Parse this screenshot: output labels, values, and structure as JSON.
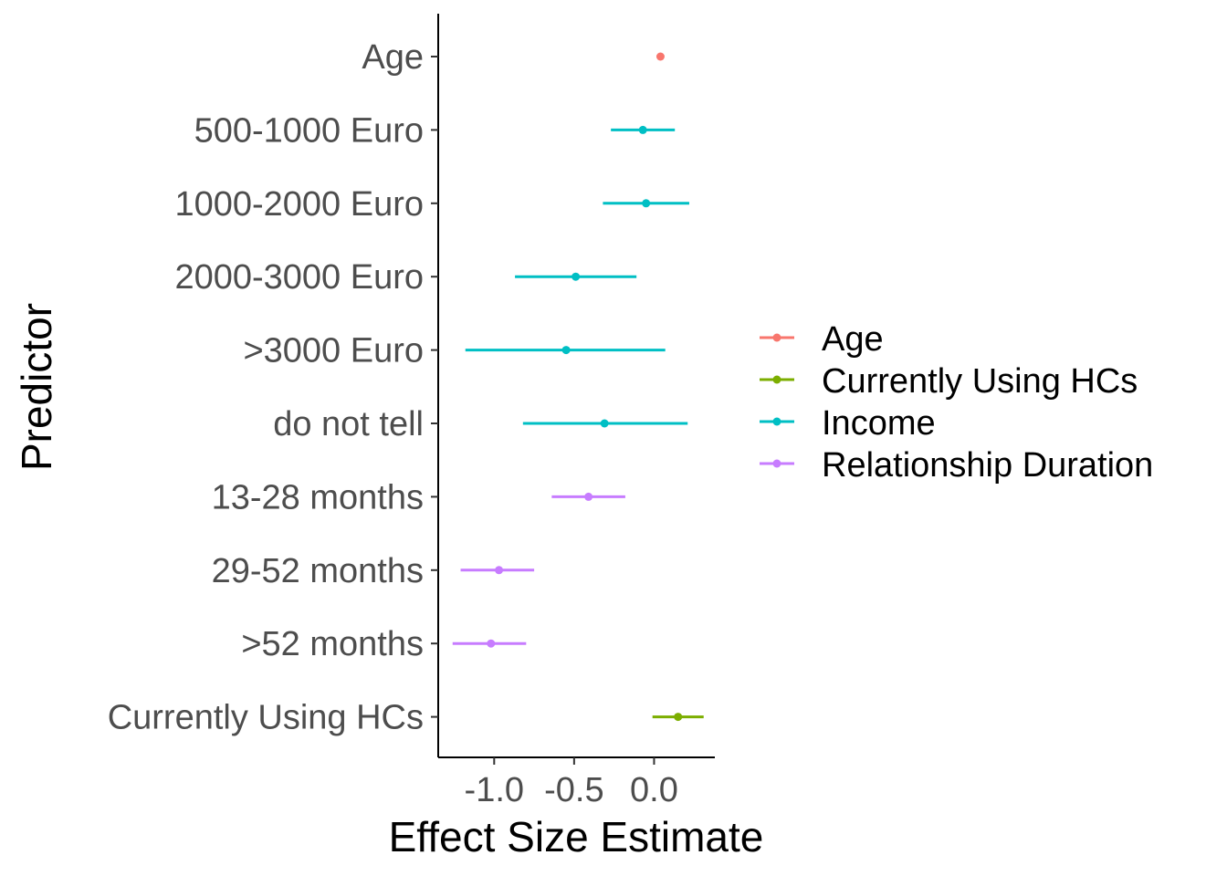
{
  "chart_data": {
    "type": "scatter",
    "subtype": "forest-plot",
    "title": "",
    "xlabel": "Effect Size Estimate",
    "ylabel": "Predictor",
    "xlim": [
      -1.35,
      0.38
    ],
    "xticks": [
      -1.0,
      -0.5,
      0.0
    ],
    "xtick_labels": [
      "-1.0",
      "-0.5",
      "0.0"
    ],
    "grid": false,
    "legend_position": "right",
    "series": [
      {
        "name": "Age",
        "color": "#F8766D"
      },
      {
        "name": "Currently Using HCs",
        "color": "#7CAE00"
      },
      {
        "name": "Income",
        "color": "#00BFC4"
      },
      {
        "name": "Relationship Duration",
        "color": "#C77CFF"
      }
    ],
    "points": [
      {
        "label": "Age",
        "group": "Age",
        "estimate": 0.04,
        "lower": 0.03,
        "upper": 0.05
      },
      {
        "label": "500-1000 Euro",
        "group": "Income",
        "estimate": -0.07,
        "lower": -0.27,
        "upper": 0.13
      },
      {
        "label": "1000-2000 Euro",
        "group": "Income",
        "estimate": -0.05,
        "lower": -0.32,
        "upper": 0.22
      },
      {
        "label": "2000-3000 Euro",
        "group": "Income",
        "estimate": -0.49,
        "lower": -0.87,
        "upper": -0.11
      },
      {
        "label": ">3000 Euro",
        "group": "Income",
        "estimate": -0.55,
        "lower": -1.18,
        "upper": 0.07
      },
      {
        "label": "do not tell",
        "group": "Income",
        "estimate": -0.31,
        "lower": -0.82,
        "upper": 0.21
      },
      {
        "label": "13-28 months",
        "group": "Relationship Duration",
        "estimate": -0.41,
        "lower": -0.64,
        "upper": -0.18
      },
      {
        "label": "29-52 months",
        "group": "Relationship Duration",
        "estimate": -0.97,
        "lower": -1.21,
        "upper": -0.75
      },
      {
        "label": ">52 months",
        "group": "Relationship Duration",
        "estimate": -1.02,
        "lower": -1.26,
        "upper": -0.8
      },
      {
        "label": "Currently Using HCs",
        "group": "Currently Using HCs",
        "estimate": 0.15,
        "lower": -0.01,
        "upper": 0.31
      }
    ]
  }
}
